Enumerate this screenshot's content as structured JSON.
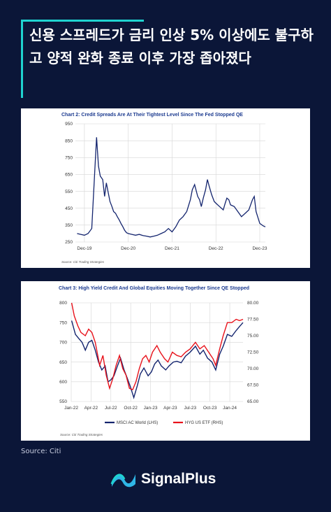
{
  "headline": "신용 스프레드가 금리 인상 5% 이상에도 불구하고 양적 완화 종료 이후 가장 좁아졌다",
  "source": "Source: Citi",
  "brand": {
    "name": "SignalPlus",
    "logo_icon": "signalplus-wave-logo-icon"
  },
  "colors": {
    "background": "#0b1638",
    "accent": "#1fd3d0",
    "navy_series": "#13246e",
    "red_series": "#e8121b",
    "chart_title": "#1b3a8f"
  },
  "chart_data": [
    {
      "type": "line",
      "title": "Chart 2: Credit Spreads Are At Their Tightest Level Since The Fed Stopped QE",
      "source_note": "Source: Citi Trading Strategies",
      "ylim": [
        250,
        950
      ],
      "yticks": [
        "250",
        "350",
        "450",
        "550",
        "650",
        "750",
        "850",
        "950"
      ],
      "xlim": [
        "2019-10",
        "2024-02"
      ],
      "xticks": [
        {
          "date": "2019-12",
          "label": "Dec-19"
        },
        {
          "date": "2020-12",
          "label": "Dec-20"
        },
        {
          "date": "2021-12",
          "label": "Dec-21"
        },
        {
          "date": "2022-12",
          "label": "Dec-22"
        },
        {
          "date": "2023-12",
          "label": "Dec-23"
        }
      ],
      "grid": true,
      "series": [
        {
          "color": "#13246e",
          "points": [
            [
              "2019-10-15",
              300
            ],
            [
              "2019-11-15",
              295
            ],
            [
              "2019-12-15",
              290
            ],
            [
              "2020-01-15",
              300
            ],
            [
              "2020-02-15",
              330
            ],
            [
              "2020-03-15",
              740
            ],
            [
              "2020-03-25",
              870
            ],
            [
              "2020-04-10",
              700
            ],
            [
              "2020-04-25",
              640
            ],
            [
              "2020-05-15",
              620
            ],
            [
              "2020-06-01",
              520
            ],
            [
              "2020-06-15",
              600
            ],
            [
              "2020-07-01",
              540
            ],
            [
              "2020-07-15",
              490
            ],
            [
              "2020-08-01",
              460
            ],
            [
              "2020-08-15",
              430
            ],
            [
              "2020-09-01",
              420
            ],
            [
              "2020-09-15",
              400
            ],
            [
              "2020-10-01",
              380
            ],
            [
              "2020-10-15",
              360
            ],
            [
              "2020-11-01",
              340
            ],
            [
              "2020-11-15",
              320
            ],
            [
              "2020-12-01",
              305
            ],
            [
              "2020-12-15",
              300
            ],
            [
              "2021-01-15",
              295
            ],
            [
              "2021-02-15",
              290
            ],
            [
              "2021-03-15",
              295
            ],
            [
              "2021-04-15",
              288
            ],
            [
              "2021-05-15",
              285
            ],
            [
              "2021-06-15",
              280
            ],
            [
              "2021-07-15",
              285
            ],
            [
              "2021-08-15",
              290
            ],
            [
              "2021-09-15",
              300
            ],
            [
              "2021-10-15",
              310
            ],
            [
              "2021-11-15",
              330
            ],
            [
              "2021-12-15",
              310
            ],
            [
              "2022-01-15",
              340
            ],
            [
              "2022-02-15",
              380
            ],
            [
              "2022-03-15",
              400
            ],
            [
              "2022-04-15",
              430
            ],
            [
              "2022-05-15",
              500
            ],
            [
              "2022-06-01",
              560
            ],
            [
              "2022-06-20",
              590
            ],
            [
              "2022-07-15",
              520
            ],
            [
              "2022-08-01",
              500
            ],
            [
              "2022-08-15",
              460
            ],
            [
              "2022-09-01",
              510
            ],
            [
              "2022-09-20",
              560
            ],
            [
              "2022-10-05",
              620
            ],
            [
              "2022-10-20",
              580
            ],
            [
              "2022-11-10",
              530
            ],
            [
              "2022-12-01",
              490
            ],
            [
              "2022-12-15",
              480
            ],
            [
              "2023-01-15",
              460
            ],
            [
              "2023-02-15",
              440
            ],
            [
              "2023-03-01",
              480
            ],
            [
              "2023-03-15",
              510
            ],
            [
              "2023-04-01",
              500
            ],
            [
              "2023-04-15",
              470
            ],
            [
              "2023-05-15",
              460
            ],
            [
              "2023-06-15",
              430
            ],
            [
              "2023-07-15",
              400
            ],
            [
              "2023-08-15",
              420
            ],
            [
              "2023-09-15",
              440
            ],
            [
              "2023-10-15",
              500
            ],
            [
              "2023-10-30",
              520
            ],
            [
              "2023-11-15",
              430
            ],
            [
              "2023-12-15",
              360
            ],
            [
              "2024-01-15",
              345
            ],
            [
              "2024-02-01",
              340
            ]
          ]
        }
      ]
    },
    {
      "type": "line",
      "title": "Chart 3: High Yield Credit And Global Equities Moving Together Since QE Stopped",
      "source_note": "Source: Citi Trading Strategies",
      "ylim_left": [
        550,
        800
      ],
      "yticks_left": [
        "550",
        "600",
        "650",
        "700",
        "750",
        "800"
      ],
      "ylim_right": [
        65.0,
        80.0
      ],
      "yticks_right": [
        "65.00",
        "67.50",
        "70.00",
        "72.50",
        "75.00",
        "77.50",
        "80.00"
      ],
      "xlim": [
        "2022-01",
        "2024-03"
      ],
      "xticks": [
        {
          "date": "2022-01",
          "label": "Jan-22"
        },
        {
          "date": "2022-04",
          "label": "Apr-22"
        },
        {
          "date": "2022-07",
          "label": "Jul-22"
        },
        {
          "date": "2022-10",
          "label": "Oct-22"
        },
        {
          "date": "2023-01",
          "label": "Jan-23"
        },
        {
          "date": "2023-04",
          "label": "Apr-23"
        },
        {
          "date": "2023-07",
          "label": "Jul-23"
        },
        {
          "date": "2023-10",
          "label": "Oct-23"
        },
        {
          "date": "2024-01",
          "label": "Jan-24"
        }
      ],
      "grid": true,
      "legend_position": "bottom",
      "series": [
        {
          "name": "MSCI AC World (LHS)",
          "color": "#13246e",
          "axis": "left",
          "points": [
            [
              "2022-01-03",
              755
            ],
            [
              "2022-01-20",
              720
            ],
            [
              "2022-02-05",
              710
            ],
            [
              "2022-02-20",
              700
            ],
            [
              "2022-03-05",
              680
            ],
            [
              "2022-03-20",
              700
            ],
            [
              "2022-04-05",
              705
            ],
            [
              "2022-04-20",
              680
            ],
            [
              "2022-05-05",
              650
            ],
            [
              "2022-05-20",
              630
            ],
            [
              "2022-06-05",
              640
            ],
            [
              "2022-06-18",
              600
            ],
            [
              "2022-07-01",
              605
            ],
            [
              "2022-07-15",
              615
            ],
            [
              "2022-08-01",
              640
            ],
            [
              "2022-08-15",
              660
            ],
            [
              "2022-09-01",
              630
            ],
            [
              "2022-09-15",
              610
            ],
            [
              "2022-10-01",
              585
            ],
            [
              "2022-10-15",
              560
            ],
            [
              "2022-11-01",
              590
            ],
            [
              "2022-11-15",
              620
            ],
            [
              "2022-12-01",
              635
            ],
            [
              "2022-12-20",
              615
            ],
            [
              "2023-01-05",
              625
            ],
            [
              "2023-01-20",
              645
            ],
            [
              "2023-02-05",
              655
            ],
            [
              "2023-02-20",
              640
            ],
            [
              "2023-03-10",
              630
            ],
            [
              "2023-03-25",
              640
            ],
            [
              "2023-04-15",
              650
            ],
            [
              "2023-05-01",
              652
            ],
            [
              "2023-05-20",
              648
            ],
            [
              "2023-06-10",
              665
            ],
            [
              "2023-07-01",
              675
            ],
            [
              "2023-07-25",
              690
            ],
            [
              "2023-08-15",
              670
            ],
            [
              "2023-09-01",
              680
            ],
            [
              "2023-09-20",
              660
            ],
            [
              "2023-10-10",
              650
            ],
            [
              "2023-10-27",
              630
            ],
            [
              "2023-11-15",
              670
            ],
            [
              "2023-12-01",
              690
            ],
            [
              "2023-12-20",
              720
            ],
            [
              "2024-01-10",
              715
            ],
            [
              "2024-01-30",
              730
            ],
            [
              "2024-02-15",
              740
            ],
            [
              "2024-03-01",
              750
            ]
          ]
        },
        {
          "name": "HYG US ETF (RHS)",
          "color": "#e8121b",
          "axis": "right",
          "points": [
            [
              "2022-01-03",
              80.0
            ],
            [
              "2022-01-15",
              78.0
            ],
            [
              "2022-02-01",
              76.5
            ],
            [
              "2022-02-15",
              75.5
            ],
            [
              "2022-03-05",
              75.0
            ],
            [
              "2022-03-20",
              76.0
            ],
            [
              "2022-04-05",
              75.5
            ],
            [
              "2022-04-20",
              74.0
            ],
            [
              "2022-05-10",
              70.5
            ],
            [
              "2022-05-25",
              72.0
            ],
            [
              "2022-06-10",
              69.0
            ],
            [
              "2022-06-25",
              67.0
            ],
            [
              "2022-07-10",
              68.5
            ],
            [
              "2022-07-25",
              70.5
            ],
            [
              "2022-08-10",
              72.0
            ],
            [
              "2022-08-25",
              70.0
            ],
            [
              "2022-09-10",
              69.0
            ],
            [
              "2022-09-25",
              67.0
            ],
            [
              "2022-10-10",
              66.8
            ],
            [
              "2022-10-25",
              68.0
            ],
            [
              "2022-11-10",
              70.0
            ],
            [
              "2022-11-25",
              71.5
            ],
            [
              "2022-12-10",
              72.0
            ],
            [
              "2022-12-25",
              71.0
            ],
            [
              "2023-01-10",
              72.5
            ],
            [
              "2023-01-30",
              73.5
            ],
            [
              "2023-02-15",
              72.5
            ],
            [
              "2023-03-05",
              71.5
            ],
            [
              "2023-03-20",
              71.0
            ],
            [
              "2023-04-10",
              72.5
            ],
            [
              "2023-05-01",
              72.0
            ],
            [
              "2023-05-20",
              71.8
            ],
            [
              "2023-06-10",
              72.5
            ],
            [
              "2023-07-01",
              73.0
            ],
            [
              "2023-07-25",
              74.0
            ],
            [
              "2023-08-15",
              73.0
            ],
            [
              "2023-09-05",
              73.5
            ],
            [
              "2023-09-25",
              72.5
            ],
            [
              "2023-10-15",
              71.5
            ],
            [
              "2023-10-27",
              70.5
            ],
            [
              "2023-11-15",
              73.0
            ],
            [
              "2023-12-01",
              75.0
            ],
            [
              "2023-12-20",
              77.0
            ],
            [
              "2024-01-10",
              77.0
            ],
            [
              "2024-01-30",
              77.5
            ],
            [
              "2024-02-15",
              77.3
            ],
            [
              "2024-03-01",
              77.5
            ]
          ]
        }
      ]
    }
  ]
}
